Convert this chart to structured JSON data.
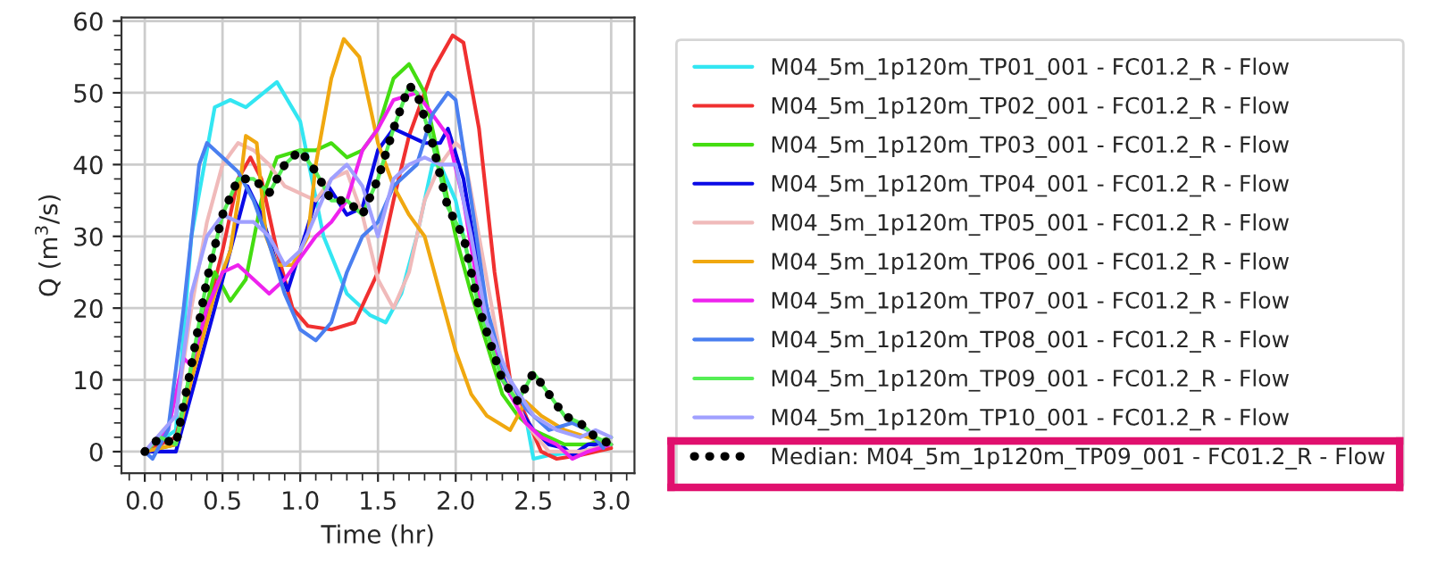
{
  "chart_data": {
    "type": "line",
    "xlabel": "Time (hr)",
    "ylabel": "Q (m$^{3}$/s)",
    "xlim": [
      -0.15,
      3.15
    ],
    "ylim": [
      -3,
      60.5
    ],
    "xticks": [
      {
        "value": 0,
        "label": "0.0"
      },
      {
        "value": 0.5,
        "label": "0.5"
      },
      {
        "value": 1,
        "label": "1.0"
      },
      {
        "value": 1.5,
        "label": "1.5"
      },
      {
        "value": 2,
        "label": "2.0"
      },
      {
        "value": 2.5,
        "label": "2.5"
      },
      {
        "value": 3,
        "label": "3.0"
      }
    ],
    "yticks": [
      0,
      10,
      20,
      30,
      40,
      50,
      60
    ],
    "grid": true,
    "legend": "right",
    "line_style": "solid",
    "series": [
      {
        "name": "M04_5m_1p120m_TP01_001 - FC01.2_R - Flow",
        "color": "#33e6f2",
        "x": [
          0,
          0.2,
          0.3,
          0.45,
          0.55,
          0.65,
          0.85,
          1.0,
          1.15,
          1.3,
          1.45,
          1.55,
          1.65,
          1.75,
          1.85,
          1.9,
          2.0,
          2.1,
          2.3,
          2.45,
          2.5,
          2.6,
          2.8,
          3.0
        ],
        "values": [
          0,
          3,
          30,
          48,
          49,
          48,
          51.5,
          46,
          30,
          22,
          19,
          18,
          22,
          30,
          40,
          40,
          35,
          25,
          10,
          5,
          -1,
          -0.5,
          0,
          1
        ]
      },
      {
        "name": "M04_5m_1p120m_TP02_001 - FC01.2_R - Flow",
        "color": "#f03030",
        "x": [
          0,
          0.2,
          0.35,
          0.5,
          0.6,
          0.68,
          0.75,
          0.85,
          0.95,
          1.05,
          1.2,
          1.35,
          1.5,
          1.6,
          1.7,
          1.85,
          1.98,
          2.05,
          2.15,
          2.25,
          2.35,
          2.45,
          2.55,
          2.65,
          2.8,
          3.0
        ],
        "values": [
          0,
          2,
          15,
          28,
          38,
          41,
          38,
          28,
          20,
          17.5,
          17,
          18,
          25,
          35,
          44,
          53,
          58,
          57,
          45,
          25,
          10,
          5,
          0,
          -1,
          -0.5,
          0.5
        ]
      },
      {
        "name": "M04_5m_1p120m_TP03_001 - FC01.2_R - Flow",
        "color": "#44dd11",
        "x": [
          0,
          0.2,
          0.3,
          0.45,
          0.55,
          0.65,
          0.75,
          0.85,
          1.0,
          1.1,
          1.2,
          1.3,
          1.4,
          1.5,
          1.6,
          1.7,
          1.8,
          1.9,
          2.0,
          2.1,
          2.2,
          2.3,
          2.4,
          2.5,
          2.6,
          2.7,
          2.85,
          3.0
        ],
        "values": [
          0,
          1,
          12,
          25,
          21,
          24,
          35,
          41,
          42,
          42,
          43,
          41,
          42,
          45,
          52,
          54,
          50,
          40,
          30,
          22,
          15,
          8,
          5,
          3,
          2,
          1,
          1,
          2
        ]
      },
      {
        "name": "M04_5m_1p120m_TP04_001 - FC01.2_R - Flow",
        "color": "#0a0ae6",
        "x": [
          0,
          0.2,
          0.3,
          0.45,
          0.55,
          0.66,
          0.75,
          0.85,
          0.92,
          1.0,
          1.1,
          1.18,
          1.3,
          1.4,
          1.5,
          1.6,
          1.7,
          1.8,
          1.9,
          1.95,
          2.05,
          2.15,
          2.25,
          2.35,
          2.5,
          2.6,
          2.7,
          2.75,
          2.85,
          3.0
        ],
        "values": [
          0,
          0,
          8,
          20,
          28,
          37,
          33,
          26,
          22.5,
          28,
          35,
          37,
          33,
          34,
          42,
          45,
          44,
          43,
          43,
          45,
          38,
          25,
          15,
          8,
          3,
          1,
          0.5,
          -0.5,
          1,
          1
        ]
      },
      {
        "name": "M04_5m_1p120m_TP05_001 - FC01.2_R - Flow",
        "color": "#f0baba",
        "x": [
          0,
          0.2,
          0.3,
          0.4,
          0.5,
          0.6,
          0.7,
          0.8,
          0.9,
          1.0,
          1.1,
          1.2,
          1.3,
          1.4,
          1.5,
          1.6,
          1.7,
          1.8,
          1.9,
          2.0,
          2.05,
          2.15,
          2.3,
          2.45,
          2.6,
          2.8,
          3.0
        ],
        "values": [
          0,
          5,
          20,
          32,
          40,
          43,
          42,
          40,
          37,
          36,
          35,
          38,
          39,
          33,
          24,
          20,
          25,
          35,
          40,
          43,
          42,
          30,
          12,
          4,
          0,
          0,
          1
        ]
      },
      {
        "name": "M04_5m_1p120m_TP06_001 - FC01.2_R - Flow",
        "color": "#f0a810",
        "x": [
          0,
          0.2,
          0.3,
          0.45,
          0.55,
          0.6,
          0.65,
          0.72,
          0.78,
          0.85,
          0.95,
          1.05,
          1.1,
          1.2,
          1.28,
          1.38,
          1.5,
          1.6,
          1.7,
          1.8,
          1.9,
          2.0,
          2.1,
          2.2,
          2.35,
          2.45,
          2.55,
          2.7,
          2.85,
          3.0
        ],
        "values": [
          0,
          1,
          10,
          22,
          28,
          35,
          44,
          43,
          30,
          26,
          26,
          30,
          40,
          52,
          57.5,
          55,
          43,
          37,
          33,
          30,
          22,
          14,
          8,
          5,
          3,
          7,
          5,
          3,
          2,
          1
        ]
      },
      {
        "name": "M04_5m_1p120m_TP07_001 - FC01.2_R - Flow",
        "color": "#ee22ee",
        "x": [
          0,
          0.15,
          0.25,
          0.3,
          0.4,
          0.5,
          0.6,
          0.7,
          0.8,
          0.9,
          1.0,
          1.1,
          1.2,
          1.3,
          1.4,
          1.5,
          1.6,
          1.75,
          1.85,
          1.95,
          2.05,
          2.15,
          2.3,
          2.45,
          2.55,
          2.65,
          2.75,
          2.85,
          3.0
        ],
        "values": [
          0,
          3,
          13,
          12,
          20,
          25,
          26,
          24,
          22,
          24,
          27,
          30,
          32,
          35,
          42,
          45,
          49,
          50,
          47,
          44,
          35,
          22,
          10,
          4,
          2,
          1,
          -1,
          0,
          1
        ]
      },
      {
        "name": "M04_5m_1p120m_TP08_001 - FC01.2_R - Flow",
        "color": "#4a7ff0",
        "x": [
          0,
          0.05,
          0.15,
          0.25,
          0.35,
          0.4,
          0.5,
          0.6,
          0.7,
          0.8,
          0.9,
          1.0,
          1.1,
          1.2,
          1.3,
          1.4,
          1.5,
          1.6,
          1.75,
          1.85,
          1.95,
          2.0,
          2.1,
          2.2,
          2.3,
          2.45,
          2.6,
          2.75,
          2.85,
          2.95
        ],
        "values": [
          0,
          -1,
          3,
          20,
          40,
          43,
          41,
          39,
          35,
          29,
          22,
          17,
          15.5,
          18,
          25,
          30,
          32,
          37,
          40,
          47,
          50,
          49,
          35,
          20,
          12,
          6,
          3,
          4,
          3,
          0.5
        ]
      },
      {
        "name": "M04_5m_1p120m_TP09_001 - FC01.2_R - Flow",
        "color": "#55ee55",
        "x": [
          0,
          0.1,
          0.2,
          0.3,
          0.4,
          0.5,
          0.6,
          0.7,
          0.8,
          0.9,
          1.0,
          1.1,
          1.2,
          1.3,
          1.4,
          1.5,
          1.6,
          1.7,
          1.75,
          1.85,
          1.95,
          2.05,
          2.15,
          2.3,
          2.4,
          2.5,
          2.6,
          2.7,
          2.8,
          2.9,
          3.0
        ],
        "values": [
          0,
          2,
          1,
          12,
          24,
          33,
          38,
          38,
          36,
          40,
          42,
          39,
          35,
          35,
          33,
          38,
          45,
          51,
          50,
          43,
          34,
          30,
          20,
          10,
          7,
          11,
          8,
          5,
          4,
          2,
          1
        ]
      },
      {
        "name": "M04_5m_1p120m_TP10_001 - FC01.2_R - Flow",
        "color": "#a0a0ff",
        "x": [
          0,
          0.2,
          0.3,
          0.4,
          0.5,
          0.6,
          0.7,
          0.8,
          0.9,
          1.0,
          1.1,
          1.2,
          1.3,
          1.4,
          1.5,
          1.6,
          1.7,
          1.8,
          1.9,
          2.0,
          2.1,
          2.2,
          2.35,
          2.5,
          2.65,
          2.8,
          2.9,
          3.0
        ],
        "values": [
          0,
          5,
          22,
          30,
          33,
          32,
          32,
          30,
          26,
          28,
          33,
          38,
          40,
          37,
          30,
          38,
          40,
          41,
          40,
          40,
          30,
          18,
          10,
          5,
          3,
          2,
          3,
          2
        ]
      },
      {
        "name": "Median: M04_5m_1p120m_TP09_001 - FC01.2_R - Flow",
        "color": "#000000",
        "line_style": "dotted",
        "x": [
          0,
          0.1,
          0.2,
          0.3,
          0.4,
          0.5,
          0.6,
          0.7,
          0.8,
          0.9,
          1.0,
          1.1,
          1.2,
          1.3,
          1.4,
          1.5,
          1.6,
          1.7,
          1.75,
          1.85,
          1.95,
          2.05,
          2.15,
          2.3,
          2.4,
          2.5,
          2.6,
          2.7,
          2.8,
          2.9,
          3.0
        ],
        "values": [
          0,
          2,
          1,
          12,
          24,
          33,
          38,
          38,
          36,
          40,
          42,
          39,
          35,
          35,
          33,
          38,
          45,
          51,
          50,
          43,
          34,
          30,
          20,
          10,
          7,
          11,
          8,
          5,
          4,
          2,
          1
        ]
      }
    ]
  }
}
